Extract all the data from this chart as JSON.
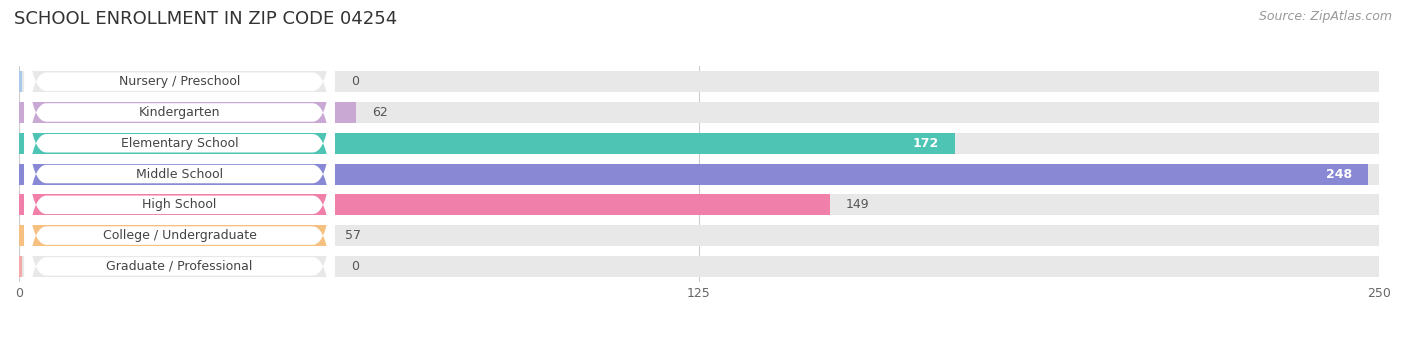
{
  "title": "SCHOOL ENROLLMENT IN ZIP CODE 04254",
  "source": "Source: ZipAtlas.com",
  "categories": [
    "Nursery / Preschool",
    "Kindergarten",
    "Elementary School",
    "Middle School",
    "High School",
    "College / Undergraduate",
    "Graduate / Professional"
  ],
  "values": [
    0,
    62,
    172,
    248,
    149,
    57,
    0
  ],
  "bar_colors": [
    "#aac8e8",
    "#c9a8d4",
    "#4ec4b4",
    "#8888d4",
    "#f080aa",
    "#f5c080",
    "#f5a8a8"
  ],
  "bar_bg_color": "#e8e8e8",
  "label_bg_color": "#ffffff",
  "xmax": 250,
  "xticks": [
    0,
    125,
    250
  ],
  "title_fontsize": 13,
  "source_fontsize": 9,
  "bar_label_fontsize": 9,
  "value_label_fontsize": 9,
  "background_color": "#ffffff",
  "grid_color": "#cccccc"
}
